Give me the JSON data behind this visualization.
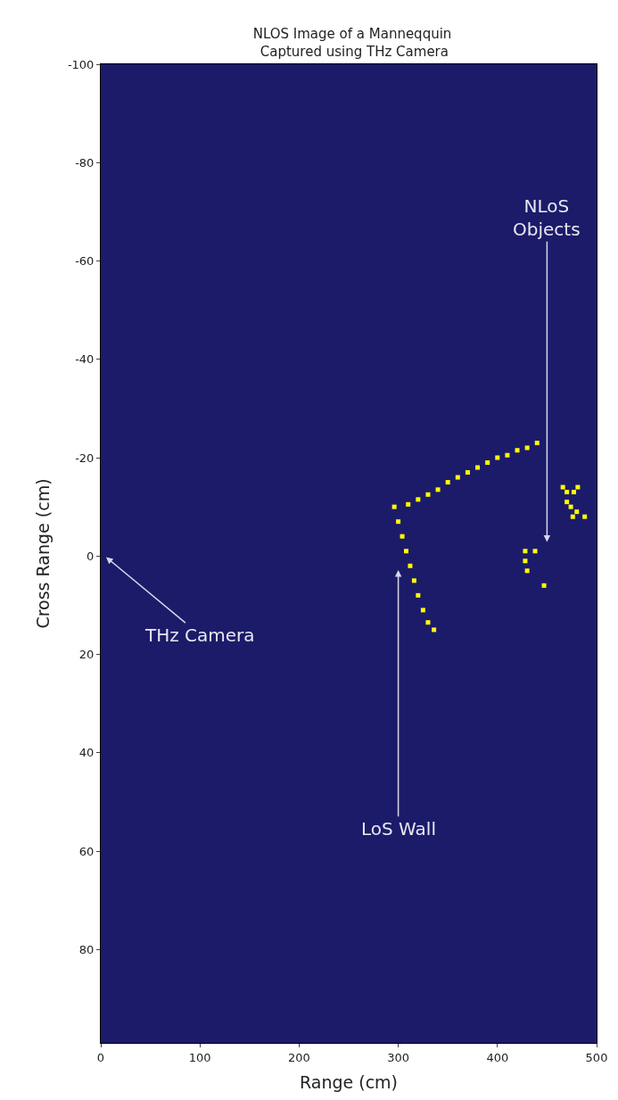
{
  "chart_data": {
    "type": "scatter",
    "title": "NLOS Image of a Manneqquin\n Captured using THz Camera",
    "xlabel": "Range (cm)",
    "ylabel": "Cross Range (cm)",
    "xlim": [
      0,
      500
    ],
    "xticks": [
      0,
      100,
      200,
      300,
      400,
      500
    ],
    "ylim": [
      99,
      -100
    ],
    "yticks": [
      -100,
      -80,
      -60,
      -40,
      -20,
      0,
      20,
      40,
      60,
      80
    ],
    "grid": false,
    "marker": "square",
    "series": [
      {
        "color": "#ffff00",
        "x": [
          296,
          300,
          304,
          308,
          312,
          316,
          320,
          325,
          330,
          336,
          310,
          320,
          330,
          340,
          350,
          360,
          370,
          380,
          390,
          400,
          410,
          420,
          430,
          440,
          466,
          470,
          477,
          481,
          470,
          474,
          476,
          480,
          488,
          428,
          428,
          430,
          438,
          447
        ],
        "values": [
          -10,
          -7,
          -4,
          -1,
          2,
          5,
          8,
          11,
          13.5,
          15,
          -10.5,
          -11.5,
          -12.5,
          -13.5,
          -15,
          -16,
          -17,
          -18,
          -19,
          -20,
          -20.5,
          -21.5,
          -22,
          -23,
          -14,
          -13,
          -13,
          -14,
          -11,
          -10,
          -8,
          -9,
          -8,
          -1,
          1,
          3,
          -1,
          6
        ]
      }
    ],
    "annotations": [
      "THz Camera",
      "LoS Wall",
      "NLoS\nObjects"
    ]
  }
}
